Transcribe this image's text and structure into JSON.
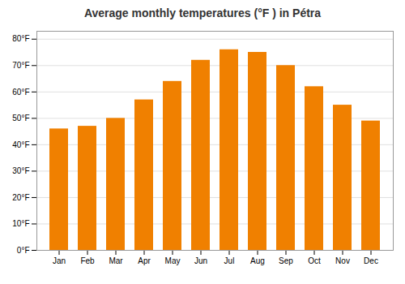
{
  "chart_data": {
    "type": "bar",
    "title": "Average monthly temperatures (°F ) in Pétra",
    "categories": [
      "Jan",
      "Feb",
      "Mar",
      "Apr",
      "May",
      "Jun",
      "Jul",
      "Aug",
      "Sep",
      "Oct",
      "Nov",
      "Dec"
    ],
    "values": [
      46,
      47,
      50,
      57,
      64,
      72,
      76,
      75,
      70,
      62,
      55,
      49
    ],
    "color": "#F08000",
    "ylim": [
      0,
      83
    ],
    "yticks": [
      {
        "value": 0,
        "label": "0°F"
      },
      {
        "value": 10,
        "label": "10°F"
      },
      {
        "value": 20,
        "label": "20°F"
      },
      {
        "value": 30,
        "label": "30°F"
      },
      {
        "value": 40,
        "label": "40°F"
      },
      {
        "value": 50,
        "label": "50°F"
      },
      {
        "value": 60,
        "label": "60°F"
      },
      {
        "value": 70,
        "label": "70°F"
      },
      {
        "value": 80,
        "label": "80°F"
      }
    ],
    "grid": true
  }
}
